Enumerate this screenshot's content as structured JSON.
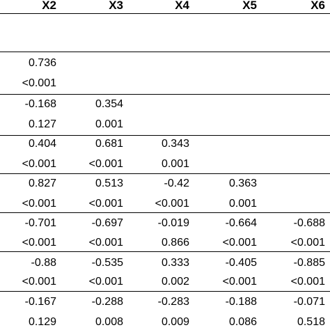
{
  "columns": [
    "X2",
    "X3",
    "X4",
    "X5",
    "X6"
  ],
  "rows": [
    {
      "coef": [],
      "p": []
    },
    {
      "coef": [
        "0.736"
      ],
      "p": [
        "<0.001"
      ]
    },
    {
      "coef": [
        "-0.168",
        "0.354"
      ],
      "p": [
        "0.127",
        "0.001"
      ]
    },
    {
      "coef": [
        "0.404",
        "0.681",
        "0.343"
      ],
      "p": [
        "<0.001",
        "<0.001",
        "0.001"
      ]
    },
    {
      "coef": [
        "0.827",
        "0.513",
        "-0.42",
        "0.363"
      ],
      "p": [
        "<0.001",
        "<0.001",
        "<0.001",
        "0.001"
      ]
    },
    {
      "coef": [
        "-0.701",
        "-0.697",
        "-0.019",
        "-0.664",
        "-0.688"
      ],
      "p": [
        "<0.001",
        "<0.001",
        "0.866",
        "<0.001",
        "<0.001"
      ]
    },
    {
      "coef": [
        "-0.88",
        "-0.535",
        "0.333",
        "-0.405",
        "-0.885"
      ],
      "p": [
        "<0.001",
        "<0.001",
        "0.002",
        "<0.001",
        "<0.001"
      ]
    },
    {
      "coef": [
        "-0.167",
        "-0.288",
        "-0.283",
        "-0.188",
        "-0.071"
      ],
      "p": [
        "0.129",
        "0.008",
        "0.009",
        "0.086",
        "0.518"
      ]
    }
  ]
}
